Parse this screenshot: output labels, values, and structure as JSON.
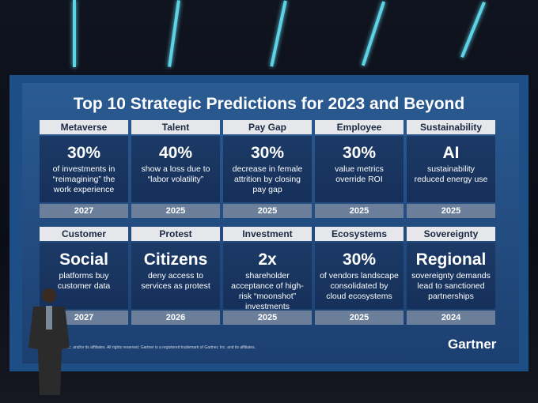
{
  "slide": {
    "title": "Top 10 Strategic Predictions for 2023 and Beyond",
    "cards": [
      {
        "header": "Metaverse",
        "headline": "30%",
        "text": "of investments in “reimagining” the work experience",
        "year": "2027"
      },
      {
        "header": "Talent",
        "headline": "40%",
        "text": "show a loss due to “labor volatility”",
        "year": "2025"
      },
      {
        "header": "Pay Gap",
        "headline": "30%",
        "text": "decrease in female attrition by closing pay gap",
        "year": "2025"
      },
      {
        "header": "Employee",
        "headline": "30%",
        "text": "value metrics override ROI",
        "year": "2025"
      },
      {
        "header": "Sustainability",
        "headline": "AI",
        "text": "sustainability reduced energy use",
        "year": "2025"
      },
      {
        "header": "Customer",
        "headline": "Social",
        "text": "platforms buy customer data",
        "year": "2027"
      },
      {
        "header": "Protest",
        "headline": "Citizens",
        "text": "deny access to services as protest",
        "year": "2026"
      },
      {
        "header": "Investment",
        "headline": "2x",
        "text": "shareholder acceptance of high-risk “moonshot” investments",
        "year": "2025"
      },
      {
        "header": "Ecosystems",
        "headline": "30%",
        "text": "of vendors landscape consolidated by cloud ecosystems",
        "year": "2025"
      },
      {
        "header": "Sovereignty",
        "headline": "Regional",
        "text": "sovereignty demands lead to sanctioned partnerships",
        "year": "2024"
      }
    ],
    "footer": "rtner, Inc. and/or its affiliates. All rights reserved. Gartner is a registered trademark of Gartner, Inc. and its affiliates.",
    "logo": "Gartner"
  }
}
